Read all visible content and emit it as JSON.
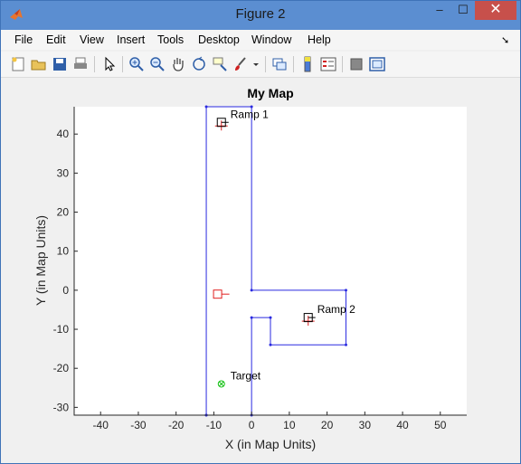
{
  "window": {
    "title": "Figure 2",
    "minimize_glyph": "–",
    "maximize_glyph": "☐",
    "close_glyph": "✕"
  },
  "menu": {
    "items": [
      {
        "label": "File"
      },
      {
        "label": "Edit"
      },
      {
        "label": "View"
      },
      {
        "label": "Insert"
      },
      {
        "label": "Tools"
      },
      {
        "label": "Desktop"
      },
      {
        "label": "Window"
      },
      {
        "label": "Help"
      }
    ]
  },
  "toolbar": {
    "icons": [
      "new-figure-icon",
      "open-file-icon",
      "save-icon",
      "print-icon",
      "pointer-icon",
      "zoom-in-icon",
      "zoom-out-icon",
      "pan-hand-icon",
      "rotate-3d-icon",
      "data-cursor-icon",
      "brush-icon",
      "brush-dropdown-icon",
      "link-plot-icon",
      "colorbar-icon",
      "legend-icon",
      "hide-plot-tools-icon",
      "show-plot-tools-icon"
    ]
  },
  "colors": {
    "map_outline": "#2a2ae0",
    "marker_red": "#e02020",
    "marker_black": "#000000",
    "target_green": "#10c010"
  },
  "chart_data": {
    "type": "scatter",
    "title": "My Map",
    "xlabel": "X (in Map Units)",
    "ylabel": "Y (in Map Units)",
    "xlim": [
      -47,
      57
    ],
    "ylim": [
      -32,
      47
    ],
    "xticks": [
      -40,
      -30,
      -20,
      -10,
      0,
      10,
      20,
      30,
      40,
      50
    ],
    "yticks": [
      -30,
      -20,
      -10,
      0,
      10,
      20,
      30,
      40
    ],
    "grid": false,
    "map_outline": {
      "x": [
        -12,
        -12,
        0,
        0,
        25,
        25,
        5,
        5,
        0,
        0,
        -12
      ],
      "y": [
        -32,
        47,
        47,
        0,
        0,
        -14,
        -14,
        -7,
        -7,
        -32,
        -32
      ]
    },
    "markers": [
      {
        "name": "ramp1",
        "label": "Ramp 1",
        "x": -8,
        "y": 43,
        "kind": "ramp"
      },
      {
        "name": "ramp2",
        "label": "Ramp 2",
        "x": 15,
        "y": -7,
        "kind": "ramp"
      },
      {
        "name": "robot",
        "label": "",
        "x": -9,
        "y": -1,
        "kind": "robot"
      },
      {
        "name": "target",
        "label": "Target",
        "x": -8,
        "y": -24,
        "kind": "target"
      }
    ]
  }
}
